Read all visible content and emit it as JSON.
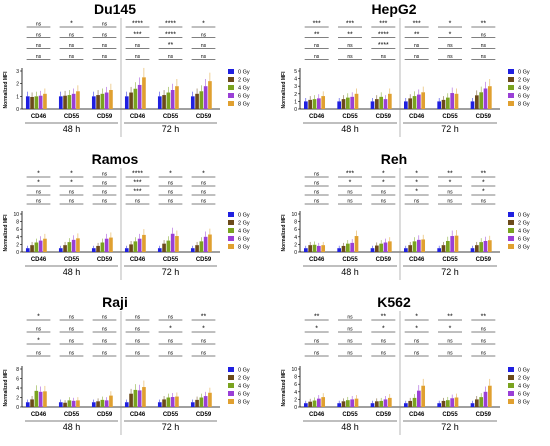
{
  "figure": {
    "legend": [
      "0 Gy",
      "2 Gy",
      "4 Gy",
      "6 Gy",
      "8 Gy"
    ],
    "series_colors": [
      "#1f1fe0",
      "#6b4a1a",
      "#7aa31f",
      "#9a3fd6",
      "#e0a030"
    ]
  },
  "chart_data": [
    {
      "type": "bar",
      "title": "Du145",
      "ylabel": "Normalized MFI",
      "ylim": [
        0,
        3
      ],
      "yticks": [
        "0",
        "1",
        "2",
        "3"
      ],
      "categories": [
        "CD46",
        "CD55",
        "CD59",
        "CD46",
        "CD55",
        "CD59"
      ],
      "groups": [
        "48 h",
        "72 h"
      ],
      "series": [
        {
          "name": "0 Gy",
          "values": [
            1.0,
            1.0,
            1.0,
            1.0,
            1.0,
            1.0
          ]
        },
        {
          "name": "2 Gy",
          "values": [
            0.95,
            1.05,
            1.1,
            1.3,
            1.1,
            1.2
          ]
        },
        {
          "name": "4 Gy",
          "values": [
            1.0,
            1.1,
            1.2,
            1.6,
            1.3,
            1.4
          ]
        },
        {
          "name": "6 Gy",
          "values": [
            1.05,
            1.2,
            1.3,
            1.9,
            1.5,
            1.8
          ]
        },
        {
          "name": "8 Gy",
          "values": [
            1.2,
            1.4,
            1.5,
            2.5,
            1.8,
            2.2
          ]
        }
      ],
      "significance_rows": [
        [
          "ns",
          "*",
          "ns",
          "****",
          "****",
          "*"
        ],
        [
          "ns",
          "ns",
          "ns",
          "***",
          "****",
          "ns"
        ],
        [
          "ns",
          "ns",
          "ns",
          "ns",
          "**",
          "ns"
        ],
        [
          "ns",
          "ns",
          "ns",
          "ns",
          "ns",
          "ns"
        ]
      ]
    },
    {
      "type": "bar",
      "title": "HepG2",
      "ylabel": "Normalized MFI",
      "ylim": [
        0,
        5
      ],
      "yticks": [
        "0",
        "1",
        "2",
        "3",
        "4",
        "5"
      ],
      "categories": [
        "CD46",
        "CD55",
        "CD59",
        "CD46",
        "CD55",
        "CD59"
      ],
      "groups": [
        "48 h",
        "72 h"
      ],
      "series": [
        {
          "name": "0 Gy",
          "values": [
            1.0,
            1.0,
            1.0,
            1.0,
            1.0,
            1.0
          ]
        },
        {
          "name": "2 Gy",
          "values": [
            1.2,
            1.3,
            1.3,
            1.4,
            1.2,
            1.8
          ]
        },
        {
          "name": "4 Gy",
          "values": [
            1.3,
            1.5,
            1.6,
            1.7,
            1.5,
            2.2
          ]
        },
        {
          "name": "6 Gy",
          "values": [
            1.4,
            1.6,
            1.3,
            1.9,
            2.1,
            2.7
          ]
        },
        {
          "name": "8 Gy",
          "values": [
            1.7,
            2.0,
            2.0,
            2.2,
            2.0,
            3.0
          ]
        }
      ],
      "significance_rows": [
        [
          "***",
          "***",
          "***",
          "***",
          "*",
          "**"
        ],
        [
          "**",
          "**",
          "****",
          "**",
          "*",
          "ns"
        ],
        [
          "ns",
          "ns",
          "****",
          "ns",
          "ns",
          "ns"
        ],
        [
          "ns",
          "ns",
          "ns",
          "ns",
          "ns",
          "ns"
        ]
      ]
    },
    {
      "type": "bar",
      "title": "Ramos",
      "ylabel": "Normalized MFI",
      "ylim": [
        0,
        10
      ],
      "yticks": [
        "0",
        "2",
        "4",
        "6",
        "8",
        "10"
      ],
      "categories": [
        "CD46",
        "CD55",
        "CD59",
        "CD46",
        "CD55",
        "CD59"
      ],
      "groups": [
        "48 h",
        "72 h"
      ],
      "series": [
        {
          "name": "0 Gy",
          "values": [
            1.0,
            1.0,
            1.0,
            1.0,
            1.0,
            1.0
          ]
        },
        {
          "name": "2 Gy",
          "values": [
            1.8,
            1.8,
            1.6,
            2.0,
            2.2,
            1.8
          ]
        },
        {
          "name": "4 Gy",
          "values": [
            2.5,
            2.6,
            2.5,
            2.8,
            3.0,
            2.8
          ]
        },
        {
          "name": "6 Gy",
          "values": [
            3.0,
            3.2,
            3.5,
            3.5,
            4.8,
            4.0
          ]
        },
        {
          "name": "8 Gy",
          "values": [
            3.5,
            3.6,
            3.8,
            4.5,
            4.2,
            4.6
          ]
        }
      ],
      "significance_rows": [
        [
          "*",
          "*",
          "ns",
          "****",
          "*",
          "*"
        ],
        [
          "*",
          "*",
          "ns",
          "***",
          "ns",
          "ns"
        ],
        [
          "ns",
          "ns",
          "ns",
          "***",
          "ns",
          "ns"
        ],
        [
          "ns",
          "ns",
          "ns",
          "ns",
          "ns",
          "ns"
        ]
      ]
    },
    {
      "type": "bar",
      "title": "Reh",
      "ylabel": "Normalized MFI",
      "ylim": [
        0,
        10
      ],
      "yticks": [
        "0",
        "2",
        "4",
        "6",
        "8",
        "10"
      ],
      "categories": [
        "CD46",
        "CD55",
        "CD59",
        "CD46",
        "CD55",
        "CD59"
      ],
      "groups": [
        "48 h",
        "72 h"
      ],
      "series": [
        {
          "name": "0 Gy",
          "values": [
            1.0,
            1.0,
            1.0,
            1.0,
            1.0,
            1.0
          ]
        },
        {
          "name": "2 Gy",
          "values": [
            1.8,
            1.6,
            1.7,
            1.8,
            1.8,
            1.8
          ]
        },
        {
          "name": "4 Gy",
          "values": [
            1.9,
            2.2,
            2.2,
            2.8,
            2.9,
            2.6
          ]
        },
        {
          "name": "6 Gy",
          "values": [
            1.6,
            2.4,
            2.5,
            3.2,
            4.2,
            2.9
          ]
        },
        {
          "name": "8 Gy",
          "values": [
            1.8,
            4.2,
            2.8,
            3.3,
            4.3,
            3.1
          ]
        }
      ],
      "significance_rows": [
        [
          "ns",
          "***",
          "*",
          "*",
          "**",
          "**"
        ],
        [
          "ns",
          "*",
          "*",
          "*",
          "*",
          "*"
        ],
        [
          "ns",
          "ns",
          "ns",
          "*",
          "ns",
          "*"
        ],
        [
          "ns",
          "ns",
          "ns",
          "ns",
          "ns",
          "ns"
        ]
      ]
    },
    {
      "type": "bar",
      "title": "Raji",
      "ylabel": "Normalized MFI",
      "ylim": [
        0,
        8
      ],
      "yticks": [
        "0",
        "2",
        "4",
        "6",
        "8"
      ],
      "categories": [
        "CD46",
        "CD55",
        "CD59",
        "CD46",
        "CD55",
        "CD59"
      ],
      "groups": [
        "48 h",
        "72 h"
      ],
      "series": [
        {
          "name": "0 Gy",
          "values": [
            1.0,
            1.0,
            1.0,
            1.0,
            1.0,
            1.0
          ]
        },
        {
          "name": "2 Gy",
          "values": [
            1.6,
            0.9,
            1.2,
            2.8,
            1.6,
            1.5
          ]
        },
        {
          "name": "4 Gy",
          "values": [
            3.4,
            1.4,
            1.5,
            3.6,
            2.0,
            2.0
          ]
        },
        {
          "name": "6 Gy",
          "values": [
            3.2,
            1.3,
            1.4,
            3.5,
            2.1,
            2.3
          ]
        },
        {
          "name": "8 Gy",
          "values": [
            3.3,
            1.4,
            2.4,
            4.2,
            2.2,
            3.0
          ]
        }
      ],
      "significance_rows": [
        [
          "*",
          "ns",
          "ns",
          "ns",
          "ns",
          "**"
        ],
        [
          "ns",
          "ns",
          "ns",
          "ns",
          "*",
          "*"
        ],
        [
          "*",
          "ns",
          "ns",
          "ns",
          "ns",
          "ns"
        ],
        [
          "ns",
          "ns",
          "ns",
          "ns",
          "ns",
          "ns"
        ]
      ]
    },
    {
      "type": "bar",
      "title": "K562",
      "ylabel": "Normalized MFI",
      "ylim": [
        0,
        10
      ],
      "yticks": [
        "0",
        "2",
        "4",
        "6",
        "8",
        "10"
      ],
      "categories": [
        "CD46",
        "CD55",
        "CD59",
        "CD46",
        "CD55",
        "CD59"
      ],
      "groups": [
        "48 h",
        "72 h"
      ],
      "series": [
        {
          "name": "0 Gy",
          "values": [
            1.0,
            1.0,
            1.0,
            1.0,
            1.0,
            1.0
          ]
        },
        {
          "name": "2 Gy",
          "values": [
            1.4,
            1.5,
            1.5,
            1.6,
            1.6,
            2.0
          ]
        },
        {
          "name": "4 Gy",
          "values": [
            1.7,
            1.8,
            1.6,
            2.4,
            1.8,
            2.6
          ]
        },
        {
          "name": "6 Gy",
          "values": [
            2.2,
            2.0,
            2.0,
            4.3,
            2.3,
            4.0
          ]
        },
        {
          "name": "8 Gy",
          "values": [
            2.6,
            2.2,
            2.4,
            5.6,
            2.5,
            5.6
          ]
        }
      ],
      "significance_rows": [
        [
          "**",
          "ns",
          "**",
          "*",
          "**",
          "**"
        ],
        [
          "*",
          "ns",
          "*",
          "*",
          "*",
          "ns"
        ],
        [
          "ns",
          "ns",
          "ns",
          "ns",
          "ns",
          "ns"
        ],
        [
          "ns",
          "ns",
          "ns",
          "ns",
          "ns",
          "ns"
        ]
      ]
    }
  ]
}
